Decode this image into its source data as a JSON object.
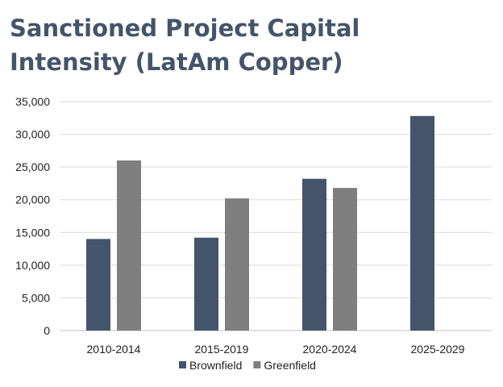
{
  "chart_data": {
    "type": "bar",
    "title_line1": "Sanctioned Project Capital",
    "title_line2": "Intensity (LatAm Copper)",
    "categories": [
      "2010-2014",
      "2015-2019",
      "2020-2024",
      "2025-2029"
    ],
    "series": [
      {
        "name": "Brownfield",
        "color": "#44546a",
        "values": [
          14000,
          14200,
          23200,
          32800
        ]
      },
      {
        "name": "Greenfield",
        "color": "#7f7f7f",
        "values": [
          26000,
          20200,
          21800,
          null
        ]
      }
    ],
    "ylim": [
      0,
      35000
    ],
    "yticks": [
      0,
      5000,
      10000,
      15000,
      20000,
      25000,
      30000,
      35000
    ],
    "ytick_labels": [
      "0",
      "5,000",
      "10,000",
      "15,000",
      "20,000",
      "25,000",
      "30,000",
      "35,000"
    ],
    "xlabel": "",
    "ylabel": "",
    "grid": true,
    "legend_position": "bottom"
  }
}
